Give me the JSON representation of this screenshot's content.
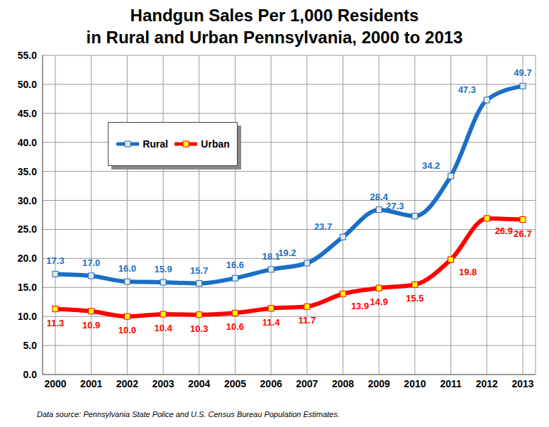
{
  "chart_data": {
    "type": "line",
    "title": "Handgun Sales Per 1,000 Residents",
    "subtitle": "in Rural and Urban Pennsylvania, 2000 to 2013",
    "note": "Data source: Pennsylvania State Police and U.S. Census Bureau Population Estimates.",
    "categories": [
      "2000",
      "2001",
      "2002",
      "2003",
      "2004",
      "2005",
      "2006",
      "2007",
      "2008",
      "2009",
      "2010",
      "2011",
      "2012",
      "2013"
    ],
    "series": [
      {
        "name": "Rural",
        "color": "#1a6fc4",
        "marker": "square",
        "values": [
          17.3,
          17.0,
          16.0,
          15.9,
          15.7,
          16.6,
          18.1,
          19.2,
          23.7,
          28.4,
          27.3,
          34.2,
          47.3,
          49.7
        ],
        "value_labels": [
          "17.3",
          "17.0",
          "16.0",
          "15.9",
          "15.7",
          "16.6",
          "18.1",
          "19.2",
          "23.7",
          "28.4",
          "27.3",
          "34.2",
          "47.3",
          "49.7"
        ]
      },
      {
        "name": "Urban",
        "color": "#ff0000",
        "marker": "square",
        "values": [
          11.3,
          10.9,
          10.0,
          10.4,
          10.3,
          10.6,
          11.4,
          11.7,
          13.9,
          14.9,
          15.5,
          19.8,
          26.9,
          26.7
        ],
        "value_labels": [
          "11.3",
          "10.9",
          "10.0",
          "10.4",
          "10.3",
          "10.6",
          "11.4",
          "11.7",
          "13.9",
          "14.9",
          "15.5",
          "19.8",
          "26.9",
          "26.7"
        ]
      }
    ],
    "ylim": [
      0,
      55
    ],
    "yticks": [
      {
        "value": 0,
        "label": "0.0"
      },
      {
        "value": 5,
        "label": "5.0"
      },
      {
        "value": 10,
        "label": "10.0"
      },
      {
        "value": 15,
        "label": "15.0"
      },
      {
        "value": 20,
        "label": "20.0"
      },
      {
        "value": 25,
        "label": "25.0"
      },
      {
        "value": 30,
        "label": "30.0"
      },
      {
        "value": 35,
        "label": "35.0"
      },
      {
        "value": 40,
        "label": "40.0"
      },
      {
        "value": 45,
        "label": "45.0"
      },
      {
        "value": 50,
        "label": "50.0"
      },
      {
        "value": 55,
        "label": "55.0"
      }
    ],
    "grid": true,
    "legend": "upper left",
    "data_labels": true
  }
}
